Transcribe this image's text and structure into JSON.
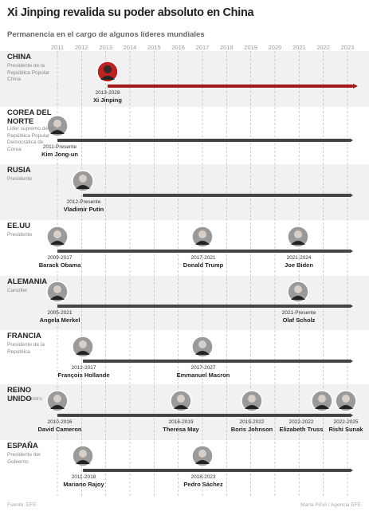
{
  "header": {
    "title": "Xi Jinping revalida su poder absoluto en China",
    "subtitle": "Permanencia en el cargo de algunos líderes mundiales"
  },
  "years": [
    2011,
    2012,
    2013,
    2014,
    2015,
    2016,
    2017,
    2018,
    2019,
    2020,
    2021,
    2022,
    2023
  ],
  "countries": [
    {
      "name": "CHINA",
      "role": "Presidente de la República Popular China",
      "leaders": [
        {
          "period": "2013-2028",
          "name": "Xi Jinping"
        }
      ]
    },
    {
      "name": "COREA DEL NORTE",
      "role": "Líder supremo de la República Popular Democrática de Corea",
      "leaders": [
        {
          "period": "2011-Presente",
          "name": "Kim Jong-un"
        }
      ]
    },
    {
      "name": "RUSIA",
      "role": "Presidente",
      "leaders": [
        {
          "period": "2012-Presente",
          "name": "Vladimir Putin"
        }
      ]
    },
    {
      "name": "EE.UU",
      "role": "Presidente",
      "leaders": [
        {
          "period": "2009-2017",
          "name": "Barack Obama"
        },
        {
          "period": "2017-2021",
          "name": "Donald Trump"
        },
        {
          "period": "2021-2024",
          "name": "Joe Biden"
        }
      ]
    },
    {
      "name": "ALEMANIA",
      "role": "Canciller",
      "leaders": [
        {
          "period": "2005-2021",
          "name": "Angela Merkel"
        },
        {
          "period": "2021-Presente",
          "name": "Olaf Scholz"
        }
      ]
    },
    {
      "name": "FRANCIA",
      "role": "Presidente de la República",
      "leaders": [
        {
          "period": "2012-2017",
          "name": "François Hollande"
        },
        {
          "period": "2017-2027",
          "name": "Emmanuel Macron"
        }
      ]
    },
    {
      "name": "REINO UNIDO",
      "role": "Primer ministro",
      "leaders": [
        {
          "period": "2010-2016",
          "name": "David Cameron"
        },
        {
          "period": "2016-2019",
          "name": "Theresa May"
        },
        {
          "period": "2019-2022",
          "name": "Boris Johnson"
        },
        {
          "period": "2022-2022",
          "name": "Elizabeth Truss"
        },
        {
          "period": "2022-2025",
          "name": "Rishi Sunak"
        }
      ]
    },
    {
      "name": "ESPAÑA",
      "role": "Presidente del Gobierno",
      "leaders": [
        {
          "period": "2011-2018",
          "name": "Mariano Rajoy"
        },
        {
          "period": "2018-2023",
          "name": "Pedro Sáchez"
        }
      ]
    }
  ],
  "footer": {
    "source": "Fuente: EFE",
    "credit": "Marta Piñol / Agencia EFE"
  }
}
